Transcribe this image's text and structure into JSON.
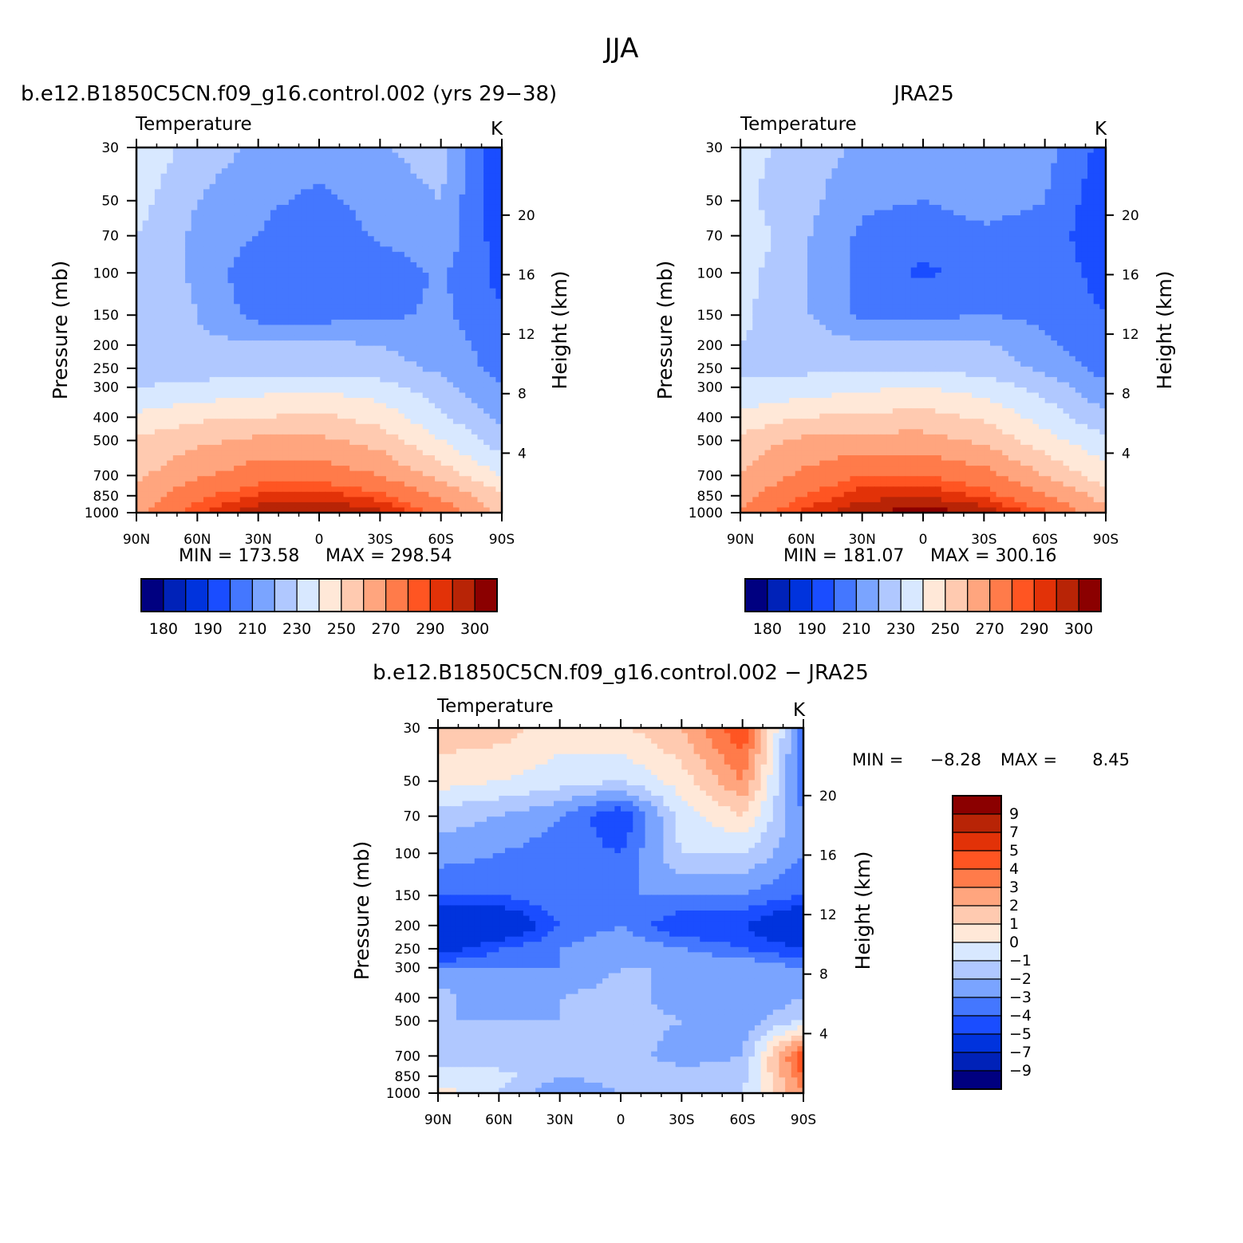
{
  "figure": {
    "title": "JJA",
    "label_colors": [
      "#000080",
      "#0022b8",
      "#0033dd",
      "#1a4dff",
      "#4477ff",
      "#7aa4ff",
      "#b0c8ff",
      "#d8e8ff",
      "#ffe8d8",
      "#ffcab0",
      "#ffa57e",
      "#ff7b4a",
      "#ff5522",
      "#e23208",
      "#b82406",
      "#8b0000"
    ]
  },
  "chart_data": [
    {
      "type": "heatmap",
      "title": "b.e12.B1850C5CN.f09_g16.control.002 (yrs 29−38)",
      "left_label": "Temperature",
      "right_label": "K",
      "xlabel": "",
      "ylabel": "Pressure (mb)",
      "y2label": "Height (km)",
      "x_ticks": [
        "90N",
        "60N",
        "30N",
        "0",
        "30S",
        "60S",
        "90S"
      ],
      "y_ticks": [
        30,
        50,
        70,
        100,
        150,
        200,
        250,
        300,
        400,
        500,
        700,
        850,
        1000
      ],
      "y_log_scale": true,
      "ylim": [
        1000,
        30
      ],
      "y2_ticks": [
        4,
        8,
        12,
        16,
        20
      ],
      "colorbar": {
        "labels": [
          "180",
          "190",
          "210",
          "230",
          "250",
          "270",
          "290",
          "300"
        ],
        "levels": [
          180,
          185,
          190,
          200,
          210,
          220,
          230,
          240,
          250,
          260,
          270,
          280,
          285,
          290,
          295,
          300
        ]
      },
      "min_label": "MIN = 173.58",
      "max_label": "MAX = 298.54",
      "min": 173.58,
      "max": 298.54,
      "lat": [
        90,
        60,
        30,
        0,
        -30,
        -60,
        -90
      ],
      "pressure": [
        30,
        50,
        70,
        100,
        150,
        200,
        250,
        300,
        400,
        500,
        700,
        850,
        1000
      ],
      "values": [
        [
          238,
          226,
          218,
          214,
          219,
          225,
          191
        ],
        [
          234,
          220,
          212,
          208,
          214,
          220,
          190
        ],
        [
          230,
          218,
          210,
          202,
          212,
          218,
          194
        ],
        [
          228,
          218,
          202,
          200,
          202,
          212,
          196
        ],
        [
          228,
          220,
          206,
          206,
          208,
          212,
          202
        ],
        [
          226,
          222,
          222,
          222,
          220,
          215,
          205
        ],
        [
          226,
          226,
          226,
          226,
          224,
          218,
          206
        ],
        [
          230,
          232,
          236,
          238,
          234,
          224,
          210
        ],
        [
          242,
          248,
          250,
          252,
          246,
          232,
          218
        ],
        [
          252,
          258,
          262,
          262,
          256,
          240,
          224
        ],
        [
          258,
          268,
          276,
          276,
          270,
          256,
          240
        ],
        [
          264,
          278,
          286,
          288,
          282,
          268,
          252
        ],
        [
          268,
          284,
          294,
          296,
          292,
          278,
          256
        ]
      ]
    },
    {
      "type": "heatmap",
      "title": "JRA25",
      "left_label": "Temperature",
      "right_label": "K",
      "xlabel": "",
      "ylabel": "Pressure (mb)",
      "y2label": "Height (km)",
      "x_ticks": [
        "90N",
        "60N",
        "30N",
        "0",
        "30S",
        "60S",
        "90S"
      ],
      "y_ticks": [
        30,
        50,
        70,
        100,
        150,
        200,
        250,
        300,
        400,
        500,
        700,
        850,
        1000
      ],
      "y_log_scale": true,
      "ylim": [
        1000,
        30
      ],
      "y2_ticks": [
        4,
        8,
        12,
        16,
        20
      ],
      "colorbar": {
        "labels": [
          "180",
          "190",
          "210",
          "230",
          "250",
          "270",
          "290",
          "300"
        ],
        "levels": [
          180,
          185,
          190,
          200,
          210,
          220,
          230,
          240,
          250,
          260,
          270,
          280,
          285,
          290,
          295,
          300
        ]
      },
      "min_label": "MIN = 181.07",
      "max_label": "MAX = 300.16",
      "min": 181.07,
      "max": 300.16,
      "lat": [
        90,
        60,
        30,
        0,
        -30,
        -60,
        -90
      ],
      "pressure": [
        30,
        50,
        70,
        100,
        150,
        200,
        250,
        300,
        400,
        500,
        700,
        850,
        1000
      ],
      "values": [
        [
          234,
          226,
          218,
          216,
          220,
          214,
          196
        ],
        [
          232,
          224,
          212,
          210,
          214,
          210,
          192
        ],
        [
          238,
          222,
          208,
          204,
          208,
          206,
          192
        ],
        [
          234,
          222,
          206,
          198,
          204,
          206,
          196
        ],
        [
          232,
          222,
          208,
          208,
          210,
          208,
          200
        ],
        [
          230,
          226,
          222,
          222,
          222,
          212,
          204
        ],
        [
          228,
          228,
          228,
          228,
          226,
          218,
          206
        ],
        [
          232,
          234,
          238,
          240,
          236,
          226,
          212
        ],
        [
          242,
          250,
          252,
          254,
          248,
          236,
          222
        ],
        [
          254,
          262,
          264,
          264,
          258,
          244,
          232
        ],
        [
          260,
          272,
          280,
          280,
          274,
          260,
          244
        ],
        [
          266,
          280,
          288,
          290,
          284,
          270,
          256
        ],
        [
          272,
          286,
          294,
          298,
          294,
          282,
          262
        ]
      ]
    },
    {
      "type": "heatmap",
      "title": "b.e12.B1850C5CN.f09_g16.control.002 − JRA25",
      "left_label": "Temperature",
      "right_label": "K",
      "xlabel": "",
      "ylabel": "Pressure (mb)",
      "y2label": "Height (km)",
      "x_ticks": [
        "90N",
        "60N",
        "30N",
        "0",
        "30S",
        "60S",
        "90S"
      ],
      "y_ticks": [
        30,
        50,
        70,
        100,
        150,
        200,
        250,
        300,
        400,
        500,
        700,
        850,
        1000
      ],
      "y_log_scale": true,
      "ylim": [
        1000,
        30
      ],
      "y2_ticks": [
        4,
        8,
        12,
        16,
        20
      ],
      "colorbar": {
        "labels": [
          "9",
          "7",
          "5",
          "4",
          "3",
          "2",
          "1",
          "0",
          "−1",
          "−2",
          "−3",
          "−4",
          "−5",
          "−7",
          "−9"
        ],
        "levels": [
          -9,
          -7,
          -5,
          -4,
          -3,
          -2,
          -1,
          0,
          1,
          2,
          3,
          4,
          5,
          7,
          9
        ]
      },
      "min_label": "MIN =",
      "min_value_label": "−8.28",
      "max_label": "MAX =",
      "max_value_label": "8.45",
      "min": -8.28,
      "max": 8.45,
      "lat": [
        90,
        60,
        30,
        0,
        -30,
        -60,
        -90
      ],
      "pressure": [
        30,
        50,
        70,
        100,
        150,
        200,
        250,
        300,
        400,
        500,
        700,
        850,
        1000
      ],
      "values": [
        [
          1.5,
          1.5,
          0.5,
          0.8,
          2,
          5,
          -4
        ],
        [
          0.5,
          0,
          -0.5,
          -1,
          0.5,
          3,
          -4
        ],
        [
          -1.5,
          -2,
          -3,
          -5,
          -0.5,
          1,
          -3
        ],
        [
          -2.5,
          -3,
          -3.5,
          -4,
          -1,
          -1,
          -3
        ],
        [
          -4,
          -4,
          -3,
          -3,
          -3,
          -3,
          -4
        ],
        [
          -7,
          -7,
          -4,
          -3,
          -5,
          -5,
          -7
        ],
        [
          -6,
          -4,
          -3,
          -2,
          -3,
          -4,
          -5
        ],
        [
          -3,
          -3,
          -3,
          -2,
          -2,
          -2,
          -3
        ],
        [
          -1.5,
          -3,
          -2,
          -1.5,
          -2.5,
          -3,
          -2
        ],
        [
          -2,
          -2,
          -2,
          -1.5,
          -2,
          -2.5,
          -1
        ],
        [
          -1.5,
          -2,
          -1.5,
          -1.5,
          -2.5,
          -2,
          5
        ],
        [
          -0.5,
          -0.5,
          -2,
          -1.5,
          -1.5,
          -1.5,
          4
        ],
        [
          0.5,
          -1,
          -3,
          -2,
          -2,
          -1,
          3
        ]
      ]
    }
  ]
}
